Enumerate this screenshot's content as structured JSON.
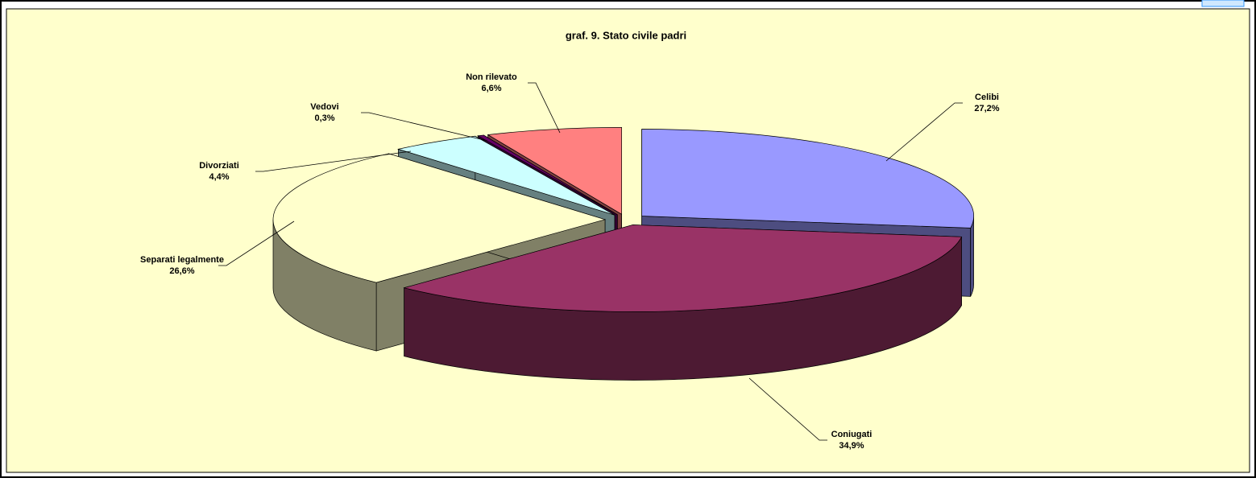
{
  "chart_data": {
    "type": "pie3d",
    "title": "graf. 9. Stato civile padri",
    "categories": [
      "Celibi",
      "Coniugati",
      "Separati legalmente",
      "Divorziati",
      "Vedovi",
      "Non rilevato"
    ],
    "values": [
      27.2,
      34.9,
      26.6,
      4.4,
      0.3,
      6.6
    ],
    "value_labels": [
      "27,2%",
      "34,9%",
      "26,6%",
      "4,4%",
      "0,3%",
      "6,6%"
    ],
    "colors": [
      "#9999ff",
      "#993366",
      "#ffffcc",
      "#ccffff",
      "#660066",
      "#ff8080"
    ]
  }
}
